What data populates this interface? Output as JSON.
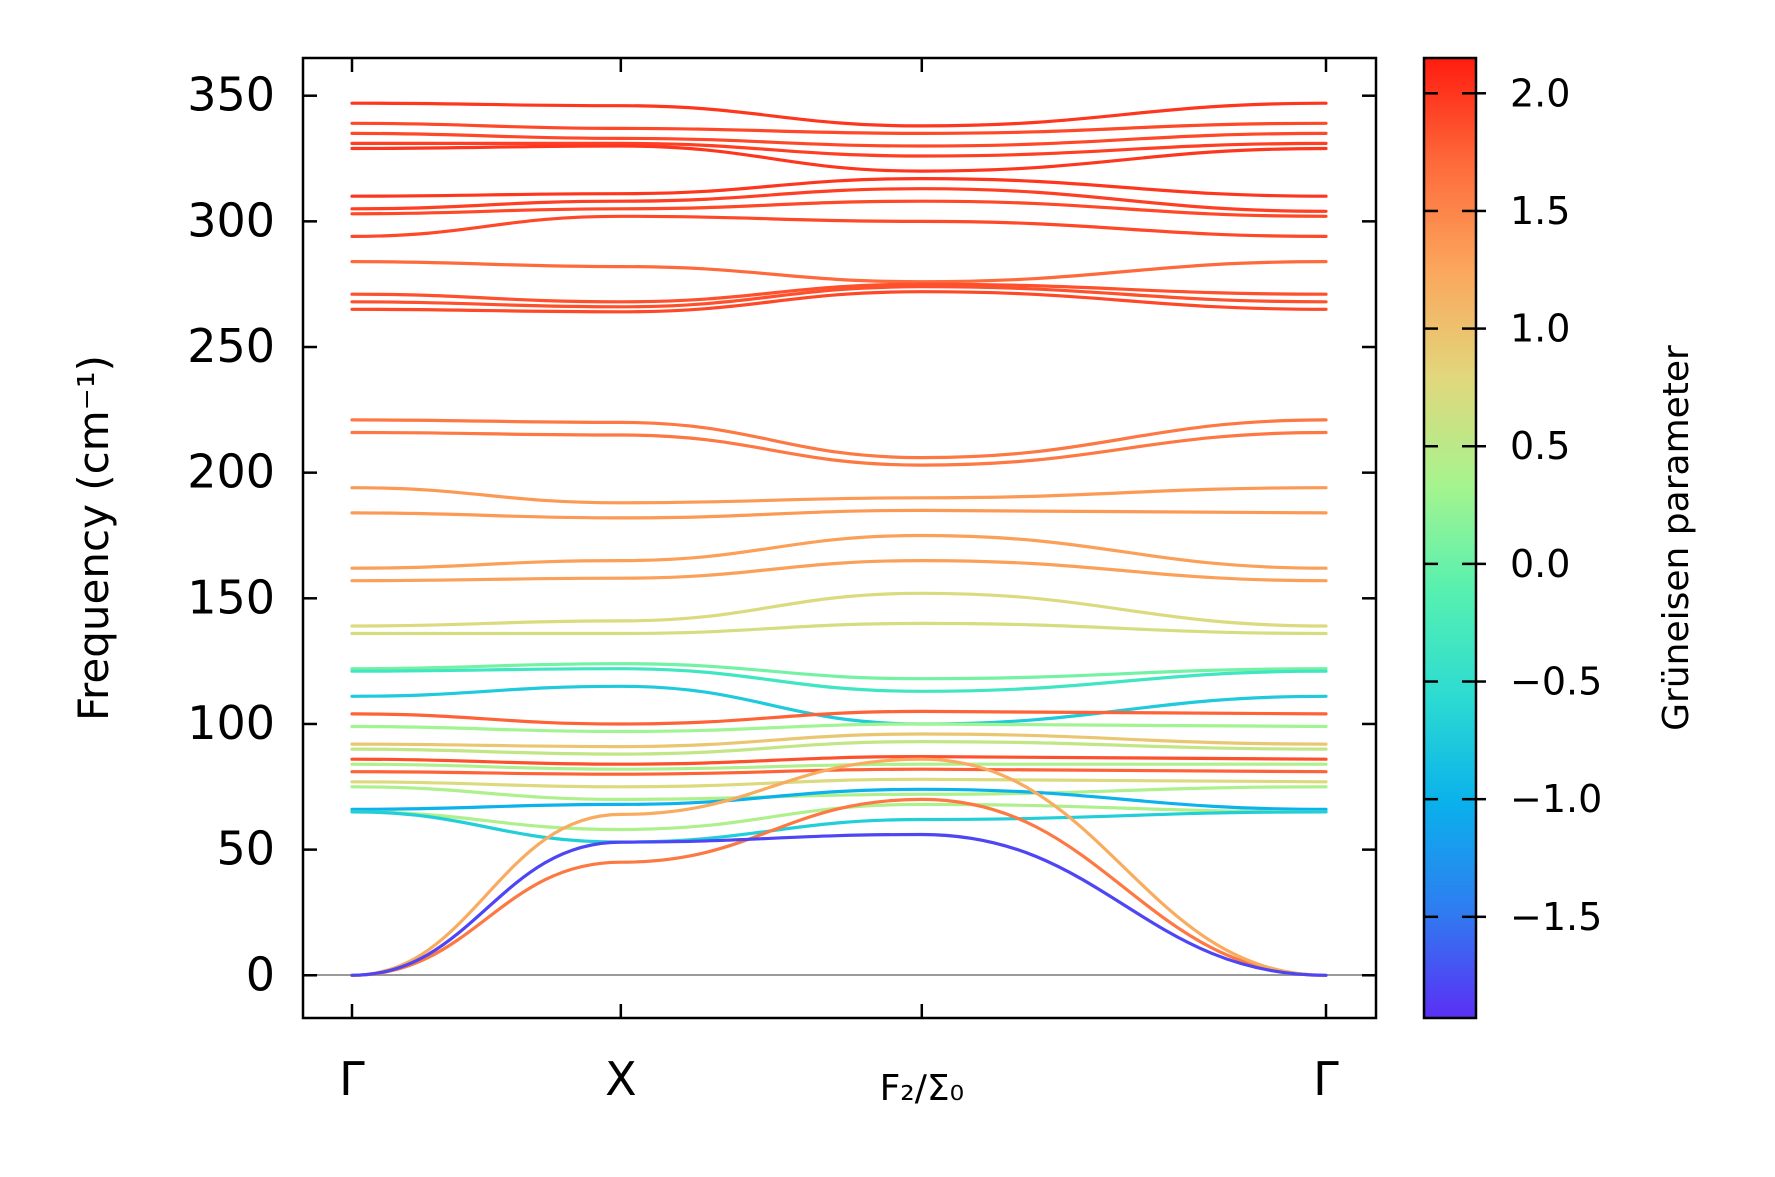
{
  "chart_data": {
    "type": "line",
    "title": "",
    "xlabel": "",
    "ylabel": "Frequency (cm⁻¹)",
    "ylim": [
      -17,
      365
    ],
    "yticks": [
      0,
      50,
      100,
      150,
      200,
      250,
      300,
      350
    ],
    "ytick_labels": [
      "0",
      "50",
      "100",
      "150",
      "200",
      "250",
      "300",
      "350"
    ],
    "k_path": [
      {
        "label": "Γ",
        "pos": 0.0
      },
      {
        "label": "X",
        "pos": 0.276
      },
      {
        "label": "F₂/Σ₀",
        "pos": 0.585
      },
      {
        "label": "Γ",
        "pos": 1.0
      }
    ],
    "colorbar": {
      "label": "Grüneisen parameter",
      "range": [
        -1.93,
        2.15
      ],
      "ticks": [
        -1.5,
        -1.0,
        -0.5,
        0.0,
        0.5,
        1.0,
        1.5,
        2.0
      ],
      "tick_labels": [
        "−1.5",
        "−1.0",
        "−0.5",
        "0.0",
        "0.5",
        "1.0",
        "1.5",
        "2.0"
      ],
      "colormap": [
        "#5b2ff5",
        "#2f7cf0",
        "#0ab0ec",
        "#2cdbd2",
        "#56f0b0",
        "#a6f48e",
        "#e1d77c",
        "#fba75d",
        "#fe6b3b",
        "#ff1c10"
      ]
    },
    "series": [
      {
        "x": [
          0,
          0.276,
          0.585,
          1
        ],
        "y": [
          347,
          346,
          338,
          347
        ],
        "gamma": 2.0
      },
      {
        "x": [
          0,
          0.276,
          0.585,
          1
        ],
        "y": [
          339,
          337,
          335,
          339
        ],
        "gamma": 1.9
      },
      {
        "x": [
          0,
          0.276,
          0.585,
          1
        ],
        "y": [
          335,
          333,
          330,
          335
        ],
        "gamma": 1.9
      },
      {
        "x": [
          0,
          0.276,
          0.585,
          1
        ],
        "y": [
          331,
          331,
          326,
          331
        ],
        "gamma": 1.95
      },
      {
        "x": [
          0,
          0.276,
          0.585,
          1
        ],
        "y": [
          329,
          330,
          320,
          329
        ],
        "gamma": 2.0
      },
      {
        "x": [
          0,
          0.276,
          0.585,
          1
        ],
        "y": [
          310,
          311,
          317,
          310
        ],
        "gamma": 2.0
      },
      {
        "x": [
          0,
          0.276,
          0.585,
          1
        ],
        "y": [
          305,
          308,
          313,
          304
        ],
        "gamma": 1.95
      },
      {
        "x": [
          0,
          0.276,
          0.585,
          1
        ],
        "y": [
          303,
          305,
          308,
          302
        ],
        "gamma": 1.9
      },
      {
        "x": [
          0,
          0.276,
          0.585,
          1
        ],
        "y": [
          294,
          302,
          300,
          294
        ],
        "gamma": 1.9
      },
      {
        "x": [
          0,
          0.276,
          0.585,
          1
        ],
        "y": [
          284,
          282,
          276,
          284
        ],
        "gamma": 1.7
      },
      {
        "x": [
          0,
          0.276,
          0.585,
          1
        ],
        "y": [
          271,
          268,
          275,
          271
        ],
        "gamma": 1.85
      },
      {
        "x": [
          0,
          0.276,
          0.585,
          1
        ],
        "y": [
          268,
          266,
          274,
          268
        ],
        "gamma": 1.85
      },
      {
        "x": [
          0,
          0.276,
          0.585,
          1
        ],
        "y": [
          265,
          264,
          272,
          265
        ],
        "gamma": 1.9
      },
      {
        "x": [
          0,
          0.276,
          0.585,
          1
        ],
        "y": [
          221,
          220,
          206,
          221
        ],
        "gamma": 1.6
      },
      {
        "x": [
          0,
          0.276,
          0.585,
          1
        ],
        "y": [
          216,
          215,
          203,
          216
        ],
        "gamma": 1.6
      },
      {
        "x": [
          0,
          0.276,
          0.585,
          1
        ],
        "y": [
          194,
          188,
          190,
          194
        ],
        "gamma": 1.35
      },
      {
        "x": [
          0,
          0.276,
          0.585,
          1
        ],
        "y": [
          184,
          182,
          185,
          184
        ],
        "gamma": 1.35
      },
      {
        "x": [
          0,
          0.276,
          0.585,
          1
        ],
        "y": [
          162,
          165,
          175,
          162
        ],
        "gamma": 1.3
      },
      {
        "x": [
          0,
          0.276,
          0.585,
          1
        ],
        "y": [
          157,
          158,
          165,
          157
        ],
        "gamma": 1.3
      },
      {
        "x": [
          0,
          0.276,
          0.585,
          1
        ],
        "y": [
          139,
          141,
          152,
          139
        ],
        "gamma": 0.75
      },
      {
        "x": [
          0,
          0.276,
          0.585,
          1
        ],
        "y": [
          136,
          136,
          140,
          136
        ],
        "gamma": 0.7
      },
      {
        "x": [
          0,
          0.276,
          0.585,
          1
        ],
        "y": [
          122,
          124,
          118,
          122
        ],
        "gamma": 0.05
      },
      {
        "x": [
          0,
          0.276,
          0.585,
          1
        ],
        "y": [
          121,
          122,
          113,
          121
        ],
        "gamma": -0.35
      },
      {
        "x": [
          0,
          0.276,
          0.585,
          1
        ],
        "y": [
          111,
          115,
          100,
          111
        ],
        "gamma": -0.75
      },
      {
        "x": [
          0,
          0.276,
          0.585,
          1
        ],
        "y": [
          104,
          100,
          105,
          104
        ],
        "gamma": 1.75
      },
      {
        "x": [
          0,
          0.276,
          0.585,
          1
        ],
        "y": [
          99,
          97,
          100,
          99
        ],
        "gamma": 0.3
      },
      {
        "x": [
          0,
          0.276,
          0.585,
          1
        ],
        "y": [
          92,
          91,
          96,
          92
        ],
        "gamma": 0.95
      },
      {
        "x": [
          0,
          0.276,
          0.585,
          1
        ],
        "y": [
          90,
          88,
          93,
          90
        ],
        "gamma": 0.55
      },
      {
        "x": [
          0,
          0.276,
          0.585,
          1
        ],
        "y": [
          86,
          84,
          87,
          86
        ],
        "gamma": 1.85
      },
      {
        "x": [
          0,
          0.276,
          0.585,
          1
        ],
        "y": [
          84,
          82,
          84,
          84
        ],
        "gamma": 0.4
      },
      {
        "x": [
          0,
          0.276,
          0.585,
          1
        ],
        "y": [
          81,
          80,
          82,
          81
        ],
        "gamma": 1.75
      },
      {
        "x": [
          0,
          0.276,
          0.585,
          1
        ],
        "y": [
          77,
          75,
          78,
          77
        ],
        "gamma": 0.75
      },
      {
        "x": [
          0,
          0.276,
          0.585,
          1
        ],
        "y": [
          75,
          70,
          72,
          75
        ],
        "gamma": 0.4
      },
      {
        "x": [
          0,
          0.276,
          0.585,
          1
        ],
        "y": [
          66,
          68,
          74,
          66
        ],
        "gamma": -1.0
      },
      {
        "x": [
          0,
          0.276,
          0.585,
          1
        ],
        "y": [
          65,
          58,
          68,
          65
        ],
        "gamma": 0.4
      },
      {
        "x": [
          0,
          0.276,
          0.585,
          1
        ],
        "y": [
          65,
          53,
          62,
          65
        ],
        "gamma": -0.7
      },
      {
        "x": [
          0,
          0.276,
          0.585,
          1
        ],
        "y": [
          0,
          45,
          70,
          0
        ],
        "gamma": 1.6
      },
      {
        "x": [
          0,
          0.276,
          0.585,
          1
        ],
        "y": [
          0,
          64,
          86,
          0
        ],
        "gamma": 1.2
      },
      {
        "x": [
          0,
          0.276,
          0.585,
          1
        ],
        "y": [
          0,
          53,
          56,
          0
        ],
        "gamma": -1.8
      }
    ]
  }
}
